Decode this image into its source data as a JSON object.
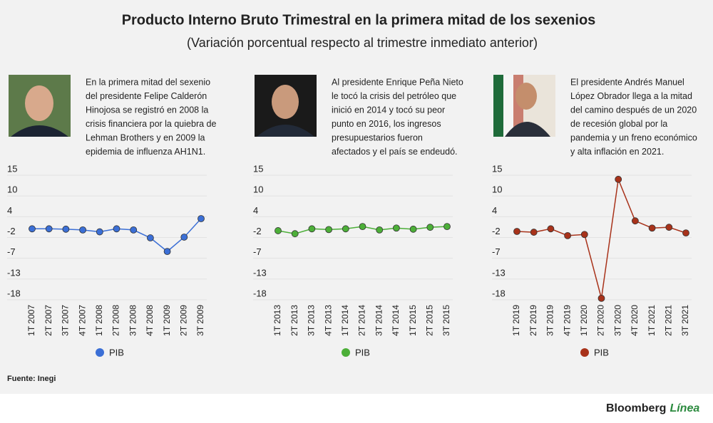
{
  "title": "Producto Interno Bruto Trimestral en la primera mitad de los sexenios",
  "subtitle": "(Variación porcentual respecto al trimestre inmediato anterior)",
  "source": "Fuente: Inegi",
  "brand": [
    "Bloomberg",
    "Línea"
  ],
  "chart_data": [
    {
      "type": "line",
      "description": [
        "En la primera mitad del sexenio",
        "del presidente Felipe Calderón",
        "Hinojosa se registró en 2008 la",
        "crisis financiera por la quiebra de",
        "Lehman Brothers y en 2009 la",
        "epidemia de influenza AH1N1."
      ],
      "categories": [
        "1T 2007",
        "2T 2007",
        "3T 2007",
        "4T 2007",
        "1T 2008",
        "2T 2008",
        "3T 2008",
        "4T 2008",
        "1T 2009",
        "2T 2009",
        "3T 2009"
      ],
      "series": [
        {
          "name": "PIB",
          "color": "#3b6fd6",
          "values": [
            0.8,
            0.8,
            0.7,
            0.5,
            0.0,
            0.8,
            0.5,
            -1.6,
            -5.2,
            -1.4,
            3.5
          ]
        }
      ],
      "ylim": [
        -18,
        15
      ],
      "yticks": [
        15,
        {
          "value": 9.5,
          "label": "10"
        },
        4,
        {
          "value": -1.5,
          "label": "-2"
        },
        -7,
        {
          "value": -12.5,
          "label": "-13"
        },
        -18
      ],
      "grid": true
    },
    {
      "type": "line",
      "description": [
        "Al presidente Enrique Peña Nieto",
        "le tocó la crisis del petróleo que",
        "inició en 2014 y tocó su peor",
        "punto en 2016, los ingresos",
        "presupuestarios fueron",
        "afectados y el país se endeudó."
      ],
      "categories": [
        "1T 2013",
        "2T 2013",
        "3T 2013",
        "4T 2013",
        "1T 2014",
        "2T 2014",
        "3T 2014",
        "4T 2014",
        "1T 2015",
        "2T 2015",
        "3T 2015"
      ],
      "series": [
        {
          "name": "PIB",
          "color": "#4caf38",
          "values": [
            0.3,
            -0.5,
            0.8,
            0.6,
            0.8,
            1.4,
            0.5,
            1.0,
            0.7,
            1.2,
            1.4
          ]
        }
      ],
      "ylim": [
        -18,
        15
      ],
      "yticks": [
        15,
        {
          "value": 9.5,
          "label": "10"
        },
        4,
        {
          "value": -1.5,
          "label": "-2"
        },
        -7,
        {
          "value": -12.5,
          "label": "-13"
        },
        -18
      ],
      "grid": true
    },
    {
      "type": "line",
      "description": [
        "El presidente Andrés Manuel",
        "López Obrador llega a la mitad",
        "del camino después de un 2020",
        "de recesión global por la",
        "pandemia y un freno económico",
        "y alta inflación en 2021."
      ],
      "categories": [
        "1T 2019",
        "2T 2019",
        "3T 2019",
        "4T 2019",
        "1T 2020",
        "2T 2020",
        "3T 2020",
        "4T 2020",
        "1T 2021",
        "2T 2021",
        "3T 2021"
      ],
      "series": [
        {
          "name": "PIB",
          "color": "#a8321a",
          "values": [
            0.1,
            -0.1,
            0.8,
            -1.0,
            -0.7,
            -17.6,
            13.9,
            2.9,
            1.0,
            1.2,
            -0.3
          ]
        }
      ],
      "ylim": [
        -18,
        15
      ],
      "yticks": [
        15,
        {
          "value": 9.5,
          "label": "10"
        },
        4,
        {
          "value": -1.5,
          "label": "-2"
        },
        -7,
        {
          "value": -12.5,
          "label": "-13"
        },
        -18
      ],
      "grid": true
    }
  ]
}
